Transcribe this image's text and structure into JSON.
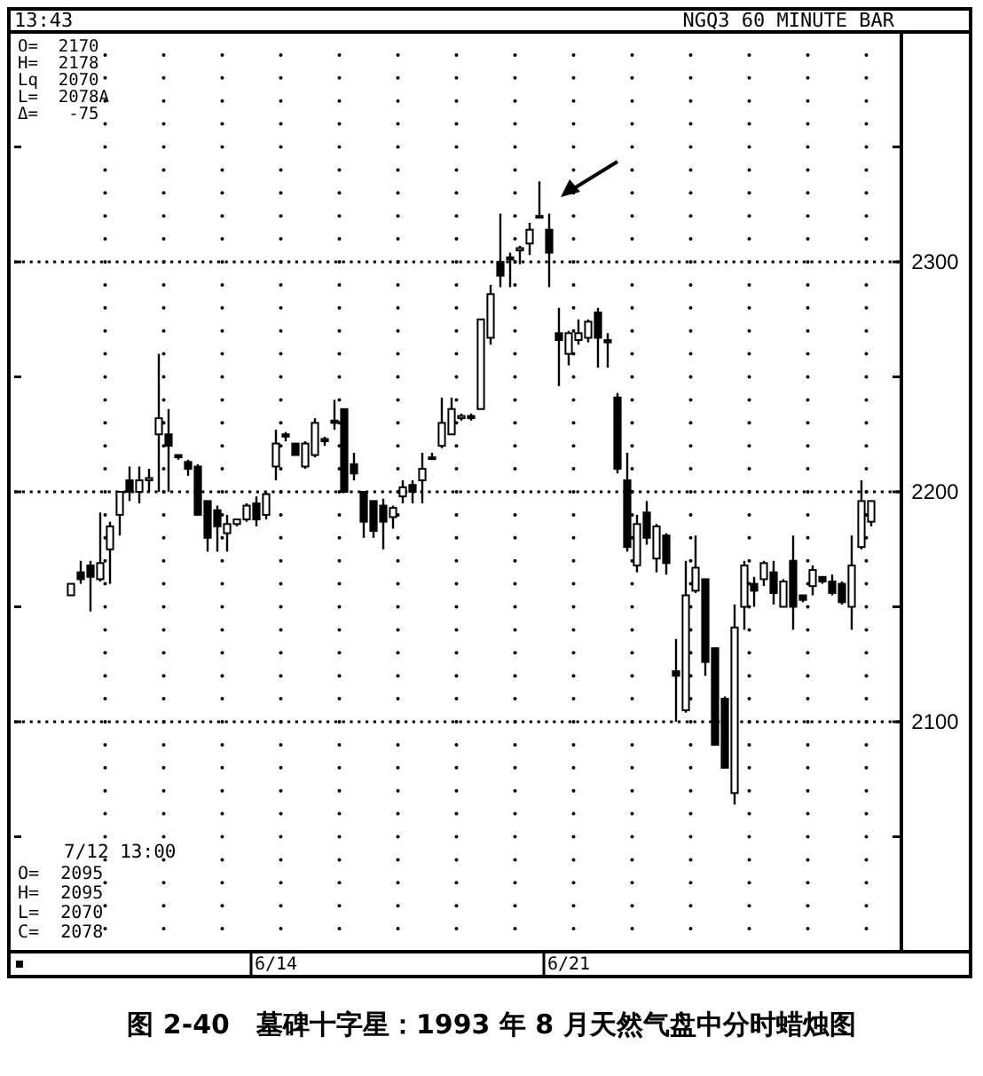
{
  "chart_data": {
    "type": "candlestick",
    "title": "图 2-40　墓碑十字星：1993 年 8 月天然气盘中分时蜡烛图",
    "annotations": [
      "13:43",
      "NGQ3 60 MINUTE BAR",
      "O=  2170",
      "H=  2178",
      "Lq  2070",
      "L=  2078A",
      "Δ=   -75",
      "7/12 13:00",
      "O=  2095",
      "H=  2095",
      "L=  2070",
      "C=  2078"
    ],
    "categories": [
      null,
      null,
      null,
      null,
      null,
      null,
      null,
      null,
      null,
      null,
      null,
      null,
      null,
      null,
      null,
      null,
      null,
      null,
      null,
      null,
      null,
      "6/14",
      null,
      null,
      null,
      null,
      null,
      null,
      null,
      null,
      null,
      null,
      null,
      null,
      null,
      null,
      null,
      null,
      null,
      null,
      null,
      null,
      null,
      null,
      null,
      null,
      null,
      null,
      null,
      null,
      null,
      "6/21",
      null,
      null,
      null,
      null,
      null,
      null,
      null,
      null,
      null,
      null,
      null,
      null,
      null,
      null,
      null,
      null,
      null,
      null,
      null,
      null,
      null,
      null,
      null,
      null,
      null,
      null,
      null,
      null,
      null,
      null,
      null
    ],
    "ohlc": [
      [
        2155,
        2160,
        2155,
        2160
      ],
      [
        2165,
        2170,
        2160,
        2162
      ],
      [
        2168,
        2170,
        2148,
        2163
      ],
      [
        2162,
        2191,
        2161,
        2169
      ],
      [
        2175,
        2187,
        2160,
        2185
      ],
      [
        2190,
        2200,
        2181,
        2200
      ],
      [
        2205,
        2211,
        2196,
        2200
      ],
      [
        2200,
        2211,
        2195,
        2205
      ],
      [
        2205,
        2210,
        2200,
        2206
      ],
      [
        2225,
        2260,
        2200,
        2232
      ],
      [
        2225,
        2236,
        2200,
        2220
      ],
      [
        2216,
        2216,
        2214,
        2215
      ],
      [
        2213,
        2214,
        2207,
        2210
      ],
      [
        2211,
        2212,
        2190,
        2190
      ],
      [
        2196,
        2196,
        2174,
        2180
      ],
      [
        2192,
        2194,
        2174,
        2185
      ],
      [
        2182,
        2190,
        2174,
        2186
      ],
      [
        2186,
        2188,
        2185,
        2188
      ],
      [
        2188,
        2195,
        2187,
        2194
      ],
      [
        2195,
        2198,
        2185,
        2188
      ],
      [
        2190,
        2200,
        2188,
        2199
      ],
      [
        2211,
        2227,
        2205,
        2221
      ],
      [
        2225,
        2226,
        2222,
        2224
      ],
      [
        2221,
        2221,
        2216,
        2216
      ],
      [
        2211,
        2222,
        2210,
        2221
      ],
      [
        2216,
        2232,
        2215,
        2230
      ],
      [
        2223,
        2224,
        2220,
        2222
      ],
      [
        2231,
        2240,
        2227,
        2230
      ],
      [
        2236,
        2236,
        2200,
        2200
      ],
      [
        2212,
        2217,
        2205,
        2208
      ],
      [
        2200,
        2200,
        2180,
        2187
      ],
      [
        2196,
        2196,
        2180,
        2183
      ],
      [
        2194,
        2197,
        2175,
        2187
      ],
      [
        2189,
        2194,
        2184,
        2193
      ],
      [
        2198,
        2205,
        2195,
        2202
      ],
      [
        2203,
        2205,
        2195,
        2200
      ],
      [
        2205,
        2217,
        2195,
        2210
      ],
      [
        2215,
        2217,
        2214,
        2215
      ],
      [
        2220,
        2241,
        2219,
        2230
      ],
      [
        2225,
        2241,
        2225,
        2236
      ],
      [
        2232,
        2234,
        2231,
        2233
      ],
      [
        2233,
        2234,
        2231,
        2232
      ],
      [
        2236,
        2275,
        2236,
        2275
      ],
      [
        2267,
        2290,
        2264,
        2286
      ],
      [
        2300,
        2321,
        2289,
        2294
      ],
      [
        2302,
        2304,
        2289,
        2301
      ],
      [
        2305,
        2307,
        2299,
        2306
      ],
      [
        2308,
        2317,
        2303,
        2314
      ],
      [
        2320,
        2335,
        2319,
        2320
      ],
      [
        2314,
        2321,
        2289,
        2304
      ],
      [
        2269,
        2280,
        2246,
        2266
      ],
      [
        2260,
        2270,
        2255,
        2269
      ],
      [
        2266,
        2275,
        2264,
        2269
      ],
      [
        2267,
        2275,
        2265,
        2274
      ],
      [
        2278,
        2280,
        2254,
        2267
      ],
      [
        2266,
        2269,
        2254,
        2265
      ],
      [
        2241,
        2243,
        2208,
        2210
      ],
      [
        2205,
        2217,
        2174,
        2176
      ],
      [
        2168,
        2190,
        2165,
        2186
      ],
      [
        2191,
        2196,
        2177,
        2180
      ],
      [
        2171,
        2186,
        2165,
        2185
      ],
      [
        2181,
        2182,
        2164,
        2169
      ],
      [
        2122,
        2136,
        2100,
        2120
      ],
      [
        2105,
        2170,
        2104,
        2155
      ],
      [
        2157,
        2181,
        2156,
        2167
      ],
      [
        2162,
        2162,
        2120,
        2126
      ],
      [
        2132,
        2132,
        2090,
        2090
      ],
      [
        2110,
        2111,
        2080,
        2080
      ],
      [
        2069,
        2151,
        2064,
        2141
      ],
      [
        2150,
        2170,
        2140,
        2168
      ],
      [
        2160,
        2163,
        2150,
        2157
      ],
      [
        2162,
        2170,
        2159,
        2169
      ],
      [
        2165,
        2170,
        2151,
        2156
      ],
      [
        2150,
        2162,
        2150,
        2161
      ],
      [
        2170,
        2181,
        2140,
        2150
      ],
      [
        2155,
        2155,
        2152,
        2153
      ],
      [
        2159,
        2168,
        2155,
        2166
      ],
      [
        2163,
        2163,
        2160,
        2161
      ],
      [
        2161,
        2164,
        2155,
        2156
      ],
      [
        2160,
        2161,
        2151,
        2152
      ],
      [
        2150,
        2181,
        2140,
        2168
      ],
      [
        2176,
        2205,
        2175,
        2196
      ],
      [
        2187,
        2196,
        2185,
        2196
      ]
    ],
    "ylim": [
      2000,
      2400
    ],
    "yticks": [
      {
        "value": 2050,
        "label": null
      },
      2100,
      {
        "value": 2150,
        "label": null
      },
      2200,
      {
        "value": 2250,
        "label": null
      },
      2300,
      {
        "value": 2350,
        "label": null
      }
    ],
    "grid": true
  }
}
